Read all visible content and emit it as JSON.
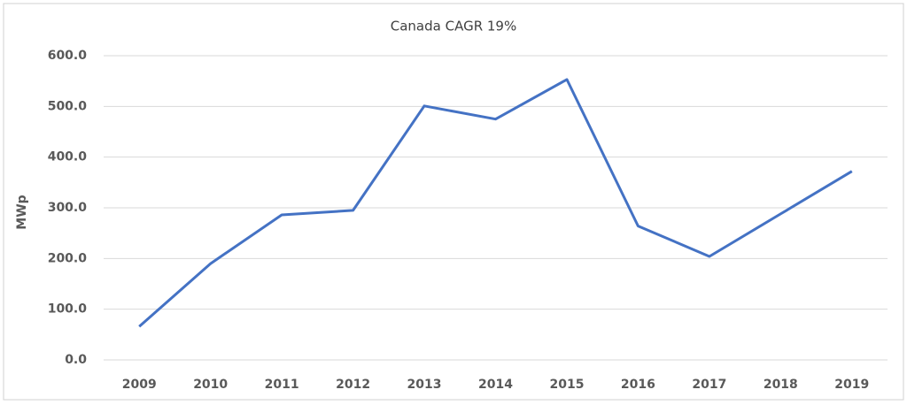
{
  "chart_data": {
    "type": "line",
    "title": "Canada CAGR 19%",
    "y_label": "MWp",
    "categories": [
      "2009",
      "2010",
      "2011",
      "2012",
      "2013",
      "2014",
      "2015",
      "2016",
      "2017",
      "2018",
      "2019"
    ],
    "series": [
      {
        "name": "Canada",
        "color": "#4472c4",
        "values": [
          66,
          190,
          286,
          295,
          501,
          475,
          553,
          264,
          204,
          288,
          372
        ]
      }
    ],
    "ylim": [
      0,
      600
    ],
    "yticks": [
      {
        "value": 0,
        "label": "0.0"
      },
      {
        "value": 100,
        "label": "100.0"
      },
      {
        "value": 200,
        "label": "200.0"
      },
      {
        "value": 300,
        "label": "300.0"
      },
      {
        "value": 400,
        "label": "400.0"
      },
      {
        "value": 500,
        "label": "500.0"
      },
      {
        "value": 600,
        "label": "600.0"
      }
    ],
    "grid": true
  }
}
